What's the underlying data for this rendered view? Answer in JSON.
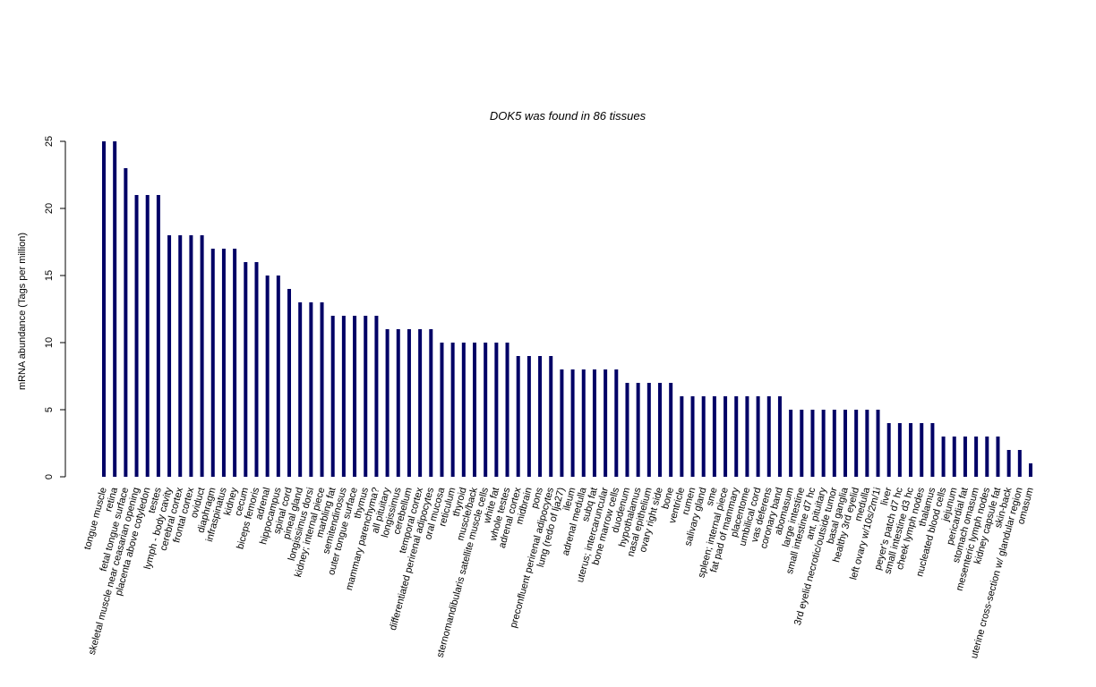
{
  "chart_data": {
    "type": "bar",
    "title": "DOK5  was found in  86  tissues",
    "y_label": "mRNA abundance (Tags per million)",
    "color": "#000066",
    "ylim": [
      0,
      25
    ],
    "yticks": [
      0,
      5,
      10,
      15,
      20,
      25
    ],
    "categories": [
      "tongue muscle",
      "retina",
      "fetal tongue surface",
      "skeletal muscle near ceasarian opening",
      "placenta above cotyledon",
      "testes",
      "lymph - body cavity",
      "cerebral cortex",
      "frontal cortex",
      "oviduct",
      "diaphragm",
      "infraspinatus",
      "kidney",
      "cecum",
      "biceps femoris",
      "adrenal",
      "hippocampus",
      "spinal cord",
      "pineal gland",
      "longissimus dorsi",
      "kidney; internal piece",
      "marbling fat",
      "semitendinosus",
      "outer tongue surface",
      "thymus",
      "mammary parenchyma?",
      "all pituitary",
      "longissimus",
      "cerebellum",
      "temporal cortex",
      "differentiated perirenal adipocytes",
      "oral mucosa",
      "reticulum",
      "thyroid",
      "muscle/back",
      "sternomandibularis satellite muscle cells",
      "white fat",
      "whole testes",
      "adrenal cortex",
      "midbrain",
      "pons",
      "preconfluent perirenal adipocytes",
      "lung (redo of lja27)",
      "ileum",
      "adrenal medulla",
      "subq fat",
      "uterus; intercaruncular",
      "bone marrow cells",
      "duodenum",
      "hypothalamus",
      "nasal epithelium",
      "ovary right side",
      "bone",
      "ventricle",
      "rumen",
      "salivary gland",
      "sme",
      "spleen; internal piece",
      "fat pad of mammary",
      "placentome",
      "umbilical cord",
      "vas deferens",
      "coronary band",
      "abomasum",
      "large intestine",
      "small intestine d7 hc",
      "ant. pituitary",
      "3rd eyelid necrotic/outside tumor",
      "basal ganglia",
      "healthy 3rd eyelid",
      "medulla",
      "left ovary w/10s/2m/1i",
      "liver",
      "peyer's patch d7 hc",
      "small intestine d3 hc",
      "cheek lymph nodes",
      "thalamus",
      "nucleated blood cells",
      "jejunum",
      "pericardial fat",
      "stomach omasum",
      "mesenteric lymph nodes",
      "kidney capsule fat",
      "skin-back",
      "uterine cross-section w/ glandular region",
      "omasum"
    ],
    "values": [
      25,
      25,
      23,
      21,
      21,
      21,
      18,
      18,
      18,
      18,
      17,
      17,
      17,
      16,
      16,
      15,
      15,
      14,
      13,
      13,
      13,
      12,
      12,
      12,
      12,
      12,
      11,
      11,
      11,
      11,
      11,
      10,
      10,
      10,
      10,
      10,
      10,
      10,
      9,
      9,
      9,
      9,
      8,
      8,
      8,
      8,
      8,
      8,
      7,
      7,
      7,
      7,
      7,
      6,
      6,
      6,
      6,
      6,
      6,
      6,
      6,
      6,
      6,
      5,
      5,
      5,
      5,
      5,
      5,
      5,
      5,
      5,
      4,
      4,
      4,
      4,
      4,
      3,
      3,
      3,
      3,
      3,
      3,
      2,
      2,
      1
    ]
  }
}
